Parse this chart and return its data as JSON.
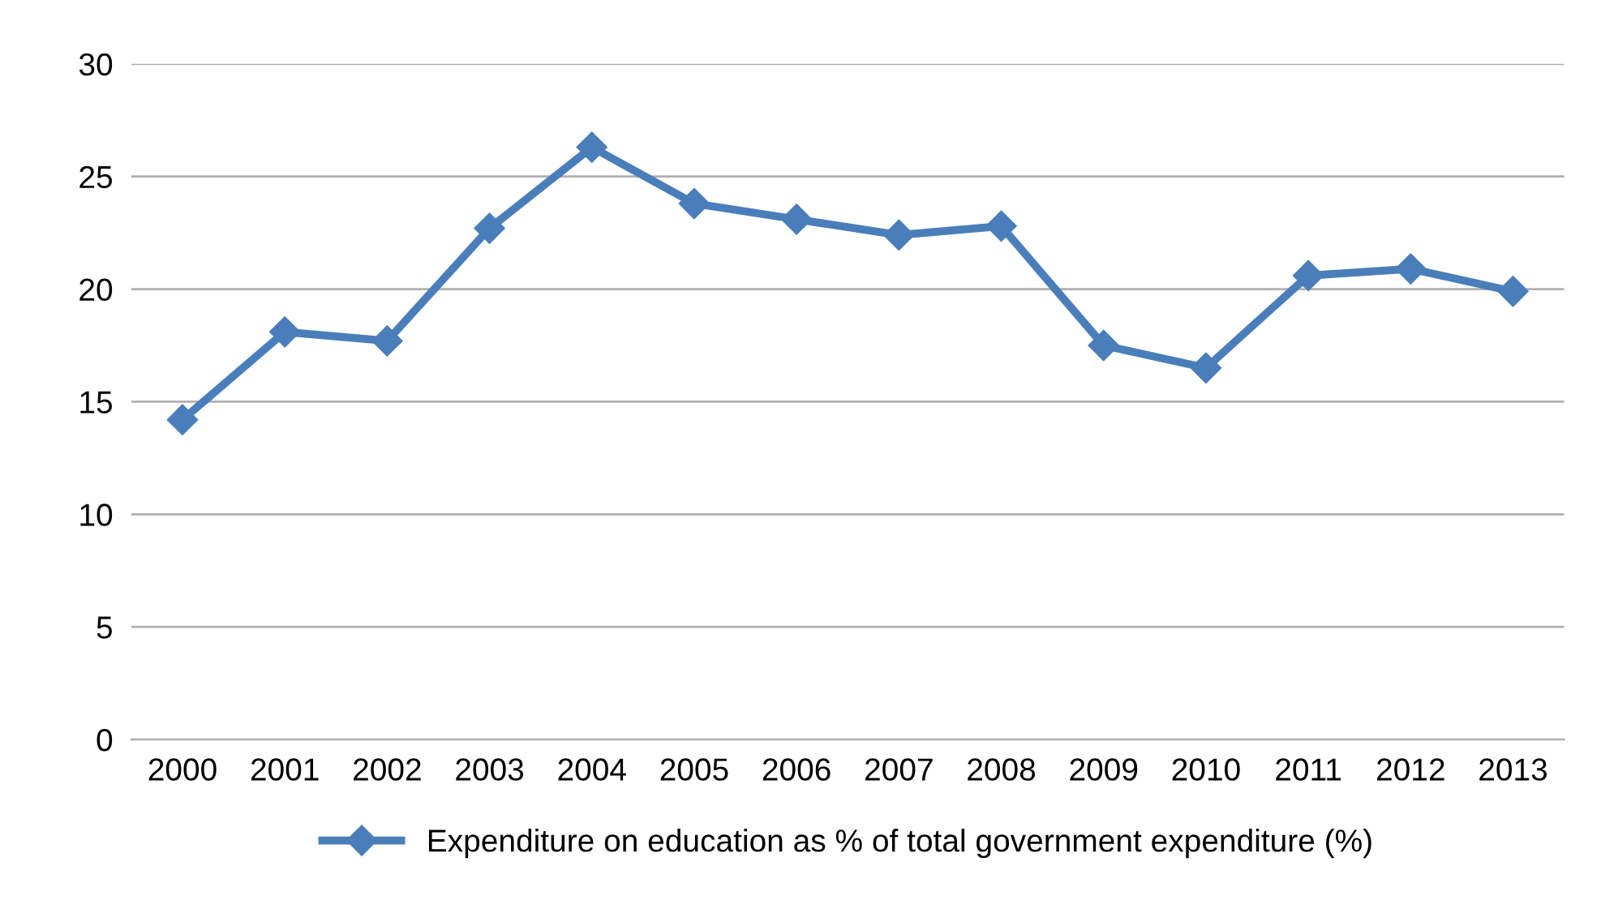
{
  "chart_data": {
    "type": "line",
    "categories": [
      "2000",
      "2001",
      "2002",
      "2003",
      "2004",
      "2005",
      "2006",
      "2007",
      "2008",
      "2009",
      "2010",
      "2011",
      "2012",
      "2013"
    ],
    "series": [
      {
        "name": "Expenditure on education as % of total government expenditure (%)",
        "color": "#4a7ebb",
        "values": [
          14.2,
          18.1,
          17.7,
          22.7,
          26.3,
          23.8,
          23.1,
          22.4,
          22.8,
          17.5,
          16.5,
          20.6,
          20.9,
          19.9
        ]
      }
    ],
    "ylim": [
      0,
      30
    ],
    "yticks": [
      0,
      5,
      10,
      15,
      20,
      25,
      30
    ],
    "grid": "y",
    "legend": "bottom",
    "marker": "diamond",
    "line_style": "solid"
  }
}
